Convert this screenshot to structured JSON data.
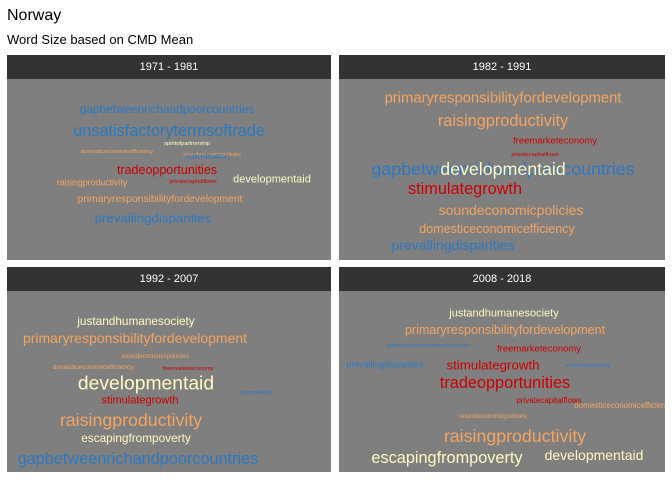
{
  "header": {
    "title": "Norway",
    "subtitle": "Word Size based on CMD Mean"
  },
  "colors": {
    "blue": "#2b78c2",
    "orange": "#f4a460",
    "red": "#cc0000",
    "yellow": "#fff8c0",
    "panel_bg": "#7f7f7f",
    "strip_bg": "#333333"
  },
  "chart_data": [
    {
      "type": "wordcloud",
      "title": "1971 - 1981",
      "words": [
        {
          "text": "gapbetweenrichandpoorcountries",
          "color": "blue",
          "weight": 0.45
        },
        {
          "text": "unsatisfactorytermsoftrade",
          "color": "blue",
          "weight": 0.75
        },
        {
          "text": "spiritofpartnership",
          "color": "yellow",
          "weight": 0.05
        },
        {
          "text": "domesticeconomicefficiency",
          "color": "orange",
          "weight": 0.05
        },
        {
          "text": "soundeconomicpolicies",
          "color": "orange",
          "weight": 0.04
        },
        {
          "text": "subordination",
          "color": "blue",
          "weight": 0.15
        },
        {
          "text": "tradeopportunities",
          "color": "red",
          "weight": 0.5
        },
        {
          "text": "raisingproductivity",
          "color": "orange",
          "weight": 0.25
        },
        {
          "text": "privatecapitalflows",
          "color": "red",
          "weight": 0.05
        },
        {
          "text": "developmentaid",
          "color": "yellow",
          "weight": 0.4
        },
        {
          "text": "primaryresponsibilityfordevelopment",
          "color": "orange",
          "weight": 0.35
        },
        {
          "text": "prevailingdisparities",
          "color": "blue",
          "weight": 0.55
        }
      ]
    },
    {
      "type": "wordcloud",
      "title": "1982 - 1991",
      "words": [
        {
          "text": "primaryresponsibilityfordevelopment",
          "color": "orange",
          "weight": 0.65
        },
        {
          "text": "raisingproductivity",
          "color": "orange",
          "weight": 0.75
        },
        {
          "text": "freemarketeconomy",
          "color": "red",
          "weight": 0.3
        },
        {
          "text": "privatecapitalflows",
          "color": "red",
          "weight": 0.05
        },
        {
          "text": "gapbetweenrichandpoorcountries",
          "color": "blue",
          "weight": 0.85
        },
        {
          "text": "developmentaid",
          "color": "yellow",
          "weight": 0.85
        },
        {
          "text": "stimulategrowth",
          "color": "red",
          "weight": 0.75
        },
        {
          "text": "soundeconomicpolicies",
          "color": "orange",
          "weight": 0.6
        },
        {
          "text": "domesticeconomicefficiency",
          "color": "orange",
          "weight": 0.5
        },
        {
          "text": "prevailingdisparities",
          "color": "blue",
          "weight": 0.6
        }
      ]
    },
    {
      "type": "wordcloud",
      "title": "1992 - 2007",
      "words": [
        {
          "text": "justandhumanesociety",
          "color": "yellow",
          "weight": 0.45
        },
        {
          "text": "primaryresponsibilityfordevelopment",
          "color": "orange",
          "weight": 0.6
        },
        {
          "text": "soundeconomicpolicies",
          "color": "orange",
          "weight": 0.1
        },
        {
          "text": "domesticeconomicefficiency",
          "color": "orange",
          "weight": 0.1
        },
        {
          "text": "freemarketeconomy",
          "color": "red",
          "weight": 0.05
        },
        {
          "text": "developmentaid",
          "color": "yellow",
          "weight": 0.95
        },
        {
          "text": "subordination",
          "color": "blue",
          "weight": 0.04
        },
        {
          "text": "stimulategrowth",
          "color": "red",
          "weight": 0.4
        },
        {
          "text": "raisingproductivity",
          "color": "orange",
          "weight": 0.85
        },
        {
          "text": "escapingfrompoverty",
          "color": "yellow",
          "weight": 0.45
        },
        {
          "text": "gapbetweenrichandpoorcountries",
          "color": "blue",
          "weight": 0.75
        }
      ]
    },
    {
      "type": "wordcloud",
      "title": "2008 - 2018",
      "words": [
        {
          "text": "justandhumanesociety",
          "color": "yellow",
          "weight": 0.4
        },
        {
          "text": "primaryresponsibilityfordevelopment",
          "color": "orange",
          "weight": 0.5
        },
        {
          "text": "gapbetweenrichandpoorcountries",
          "color": "blue",
          "weight": 0.04
        },
        {
          "text": "freemarketeconomy",
          "color": "red",
          "weight": 0.3
        },
        {
          "text": "prevailingdisparities",
          "color": "blue",
          "weight": 0.25
        },
        {
          "text": "stimulategrowth",
          "color": "red",
          "weight": 0.55
        },
        {
          "text": "sovereignequality",
          "color": "blue",
          "weight": 0.05
        },
        {
          "text": "tradeopportunities",
          "color": "red",
          "weight": 0.75
        },
        {
          "text": "privatecapitalflows",
          "color": "red",
          "weight": 0.2
        },
        {
          "text": "domesticeconomicefficiency",
          "color": "orange",
          "weight": 0.2
        },
        {
          "text": "soundeconomicpolicies",
          "color": "orange",
          "weight": 0.1
        },
        {
          "text": "raisingproductivity",
          "color": "orange",
          "weight": 0.85
        },
        {
          "text": "escapingfrompoverty",
          "color": "yellow",
          "weight": 0.75
        },
        {
          "text": "developmentaid",
          "color": "yellow",
          "weight": 0.6
        }
      ]
    }
  ]
}
